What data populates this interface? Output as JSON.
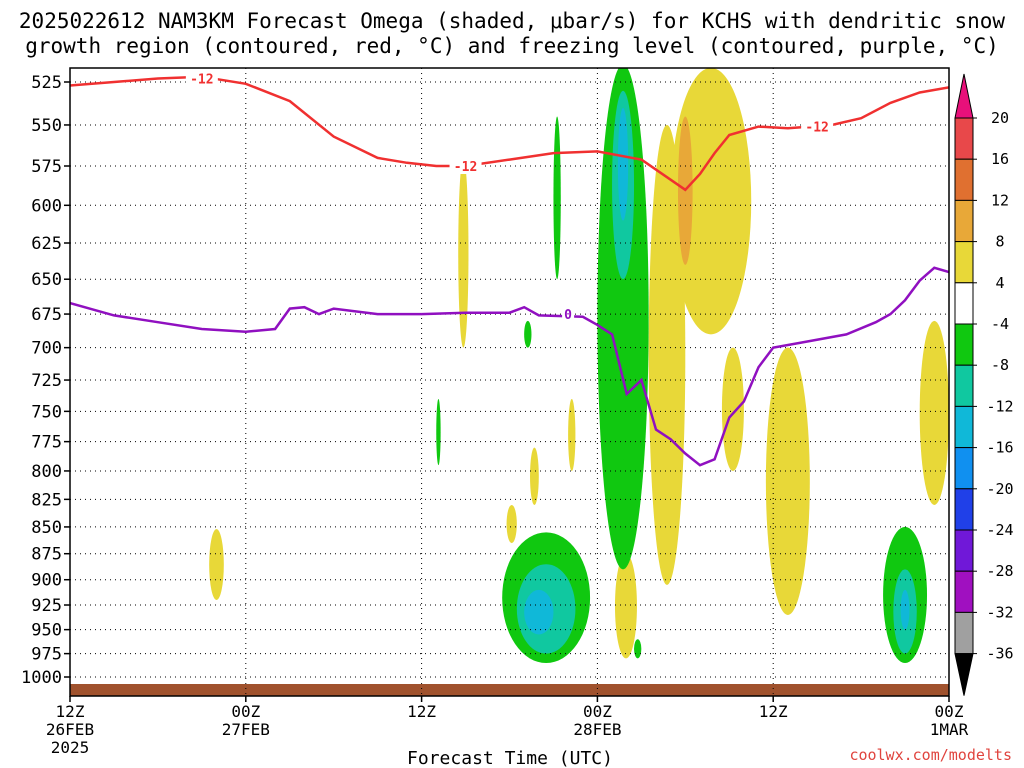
{
  "header": {
    "title_line1": "2025022612 NAM3KM Forecast Omega (shaded, μbar/s) for KCHS with dendritic snow",
    "title_line2": "growth region (contoured, red, °C) and freezing level (contoured, purple, °C)"
  },
  "footer": {
    "credit": "coolwx.com/modelts"
  },
  "chart_data": {
    "type": "time-height contour",
    "xlabel": "Forecast Time (UTC)",
    "ylabel": "",
    "x_ticks": [
      {
        "hour": 0,
        "l1": "12Z",
        "l2": "26FEB",
        "l3": "2025"
      },
      {
        "hour": 12,
        "l1": "00Z",
        "l2": "27FEB",
        "l3": ""
      },
      {
        "hour": 24,
        "l1": "12Z",
        "l2": "",
        "l3": ""
      },
      {
        "hour": 36,
        "l1": "00Z",
        "l2": "28FEB",
        "l3": ""
      },
      {
        "hour": 48,
        "l1": "12Z",
        "l2": "",
        "l3": ""
      },
      {
        "hour": 60,
        "l1": "00Z",
        "l2": "1MAR",
        "l3": ""
      }
    ],
    "xlim": [
      0,
      60
    ],
    "y_ticks": [
      525,
      550,
      575,
      600,
      625,
      650,
      675,
      700,
      725,
      750,
      775,
      800,
      825,
      850,
      875,
      900,
      925,
      950,
      975,
      1000
    ],
    "ylim": [
      515,
      1010
    ],
    "y_scale": "log-pressure (inverted)",
    "grid": true,
    "colorbar": {
      "levels": [
        "20",
        "16",
        "12",
        "8",
        "4",
        "-4",
        "-8",
        "-12",
        "-16",
        "-20",
        "-24",
        "-28",
        "-32",
        "-36"
      ],
      "colors": [
        "#e8484a",
        "#e07030",
        "#e8a838",
        "#e8d838",
        "#ffffff",
        "#10c810",
        "#10c8a0",
        "#10b8d8",
        "#1090f0",
        "#2040e8",
        "#7018d8",
        "#a010c0",
        "#a0a0a0"
      ],
      "top_arrow_color": "#e8107a",
      "bottom_arrow_color": "#000000"
    },
    "contours": {
      "dgz_minus12_color": "#f03030",
      "dgz_labels": [
        "-12",
        "-12",
        "-12"
      ],
      "freezing_level_color": "#9010c0",
      "freezing_label": "0",
      "dgz_minus12": [
        [
          0,
          527
        ],
        [
          3,
          525
        ],
        [
          6,
          523
        ],
        [
          9,
          522
        ],
        [
          12,
          526
        ],
        [
          15,
          536
        ],
        [
          18,
          557
        ],
        [
          21,
          570
        ],
        [
          23,
          573
        ],
        [
          25,
          575
        ],
        [
          27,
          575
        ],
        [
          30,
          571
        ],
        [
          33,
          567
        ],
        [
          36,
          566
        ],
        [
          39,
          571
        ],
        [
          42,
          590
        ],
        [
          43,
          580
        ],
        [
          44,
          567
        ],
        [
          45,
          556
        ],
        [
          47,
          551
        ],
        [
          49,
          552
        ],
        [
          52,
          550
        ],
        [
          54,
          546
        ],
        [
          56,
          537
        ],
        [
          58,
          531
        ],
        [
          60,
          528
        ]
      ],
      "freezing_level": [
        [
          0,
          667
        ],
        [
          3,
          676
        ],
        [
          6,
          681
        ],
        [
          9,
          686
        ],
        [
          12,
          688
        ],
        [
          14,
          686
        ],
        [
          15,
          671
        ],
        [
          16,
          670
        ],
        [
          17,
          675
        ],
        [
          18,
          671
        ],
        [
          21,
          675
        ],
        [
          24,
          675
        ],
        [
          27,
          674
        ],
        [
          30,
          674
        ],
        [
          31,
          670
        ],
        [
          32,
          676
        ],
        [
          35,
          677
        ],
        [
          36,
          683
        ],
        [
          37,
          690
        ],
        [
          38,
          736
        ],
        [
          39,
          725
        ],
        [
          40,
          765
        ],
        [
          41,
          773
        ],
        [
          42,
          785
        ],
        [
          43,
          795
        ],
        [
          44,
          790
        ],
        [
          45,
          755
        ],
        [
          46,
          742
        ],
        [
          47,
          715
        ],
        [
          48,
          700
        ],
        [
          50,
          696
        ],
        [
          53,
          690
        ],
        [
          55,
          681
        ],
        [
          56,
          675
        ],
        [
          57,
          665
        ],
        [
          58,
          651
        ],
        [
          59,
          642
        ],
        [
          60,
          645
        ]
      ]
    },
    "omega_shading": [
      {
        "level": "4",
        "color": "#e8d838",
        "hours": [
          9.5,
          10.5
        ],
        "p": [
          852,
          920
        ]
      },
      {
        "level": "4",
        "color": "#e8d838",
        "hours": [
          26.5,
          27.2
        ],
        "p": [
          570,
          700
        ]
      },
      {
        "level": "4",
        "color": "#e8d838",
        "hours": [
          29.8,
          30.5
        ],
        "p": [
          830,
          865
        ]
      },
      {
        "level": "4",
        "color": "#e8d838",
        "hours": [
          31.4,
          32.0
        ],
        "p": [
          780,
          830
        ]
      },
      {
        "level": "4",
        "color": "#e8d838",
        "hours": [
          34.0,
          34.5
        ],
        "p": [
          740,
          800
        ]
      },
      {
        "level": "4",
        "color": "#e8d838",
        "hours": [
          37.2,
          38.7
        ],
        "p": [
          875,
          980
        ]
      },
      {
        "level": "4",
        "color": "#e8d838",
        "hours": [
          41.0,
          46.5
        ],
        "p": [
          517,
          690
        ]
      },
      {
        "level": "4",
        "color": "#e8d838",
        "hours": [
          39.5,
          42.0
        ],
        "p": [
          550,
          905
        ]
      },
      {
        "level": "4",
        "color": "#e8d838",
        "hours": [
          44.5,
          46.0
        ],
        "p": [
          700,
          800
        ]
      },
      {
        "level": "4",
        "color": "#e8d838",
        "hours": [
          47.5,
          50.5
        ],
        "p": [
          700,
          935
        ]
      },
      {
        "level": "4",
        "color": "#e8d838",
        "hours": [
          58.0,
          60.0
        ],
        "p": [
          680,
          830
        ]
      },
      {
        "level": "8",
        "color": "#e8a838",
        "hours": [
          41.5,
          42.5
        ],
        "p": [
          545,
          640
        ]
      },
      {
        "level": "-4",
        "color": "#10c810",
        "hours": [
          36.0,
          39.5
        ],
        "p": [
          515,
          890
        ]
      },
      {
        "level": "-4",
        "color": "#10c810",
        "hours": [
          33.0,
          33.5
        ],
        "p": [
          545,
          650
        ]
      },
      {
        "level": "-4",
        "color": "#10c810",
        "hours": [
          31.0,
          31.5
        ],
        "p": [
          680,
          700
        ]
      },
      {
        "level": "-4",
        "color": "#10c810",
        "hours": [
          25.0,
          25.3
        ],
        "p": [
          740,
          795
        ]
      },
      {
        "level": "-4",
        "color": "#10c810",
        "hours": [
          37.3,
          38.3
        ],
        "p": [
          790,
          855
        ]
      },
      {
        "level": "-4",
        "color": "#10c810",
        "hours": [
          29.5,
          35.5
        ],
        "p": [
          855,
          985
        ]
      },
      {
        "level": "-4",
        "color": "#10c810",
        "hours": [
          38.5,
          39.0
        ],
        "p": [
          960,
          980
        ]
      },
      {
        "level": "-4",
        "color": "#10c810",
        "hours": [
          55.5,
          58.5
        ],
        "p": [
          850,
          985
        ]
      },
      {
        "level": "-8",
        "color": "#10c8a0",
        "hours": [
          37.0,
          38.5
        ],
        "p": [
          530,
          650
        ]
      },
      {
        "level": "-8",
        "color": "#10c8a0",
        "hours": [
          30.5,
          34.5
        ],
        "p": [
          885,
          975
        ]
      },
      {
        "level": "-8",
        "color": "#10c8a0",
        "hours": [
          56.2,
          57.8
        ],
        "p": [
          890,
          975
        ]
      },
      {
        "level": "-12",
        "color": "#10b8d8",
        "hours": [
          37.4,
          38.1
        ],
        "p": [
          540,
          610
        ]
      },
      {
        "level": "-12",
        "color": "#10b8d8",
        "hours": [
          31.0,
          33.0
        ],
        "p": [
          910,
          955
        ]
      },
      {
        "level": "-12",
        "color": "#10b8d8",
        "hours": [
          56.7,
          57.3
        ],
        "p": [
          910,
          950
        ]
      }
    ]
  }
}
